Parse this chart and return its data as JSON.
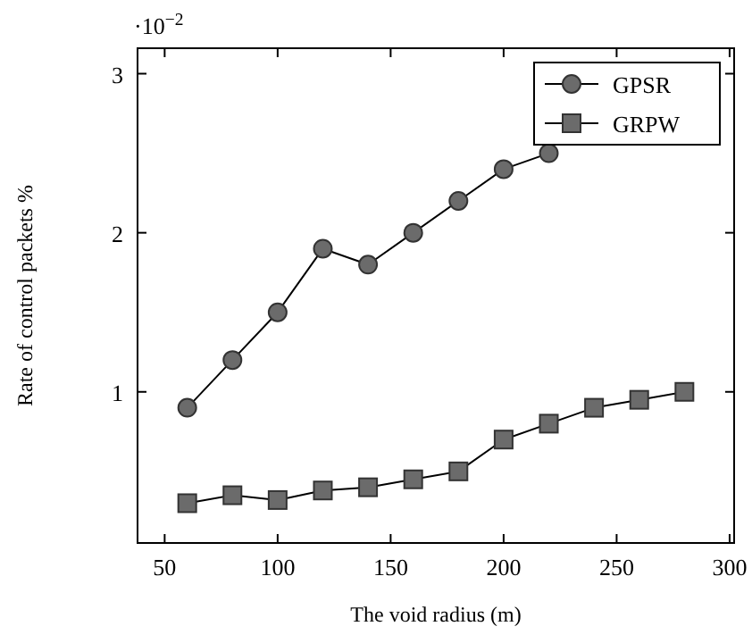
{
  "chart_data": {
    "type": "line",
    "xlabel": "The void radius (m)",
    "ylabel": "Rate of control packets %",
    "x": [
      60,
      80,
      100,
      120,
      140,
      160,
      180,
      200,
      220,
      240,
      260,
      280
    ],
    "series": [
      {
        "name": "GPSR",
        "color": "#6b6b6b",
        "marker": "circle",
        "values": [
          0.9,
          1.2,
          1.5,
          1.9,
          1.8,
          2.0,
          2.2,
          2.4,
          2.5,
          null,
          null,
          null
        ]
      },
      {
        "name": "GRPW",
        "color": "#6b6b6b",
        "marker": "square",
        "values": [
          0.3,
          0.35,
          0.32,
          0.38,
          0.4,
          0.45,
          0.5,
          0.7,
          0.8,
          0.9,
          0.95,
          1.0
        ]
      }
    ],
    "xlim": [
      38,
      302
    ],
    "xticks": [
      50,
      100,
      150,
      200,
      250,
      300
    ],
    "ylim": [
      0.05,
      3.16
    ],
    "yticks": [
      1,
      2,
      3
    ],
    "annotations": [
      "·10$^{−2}$"
    ],
    "legend": "top right",
    "grid": false
  }
}
